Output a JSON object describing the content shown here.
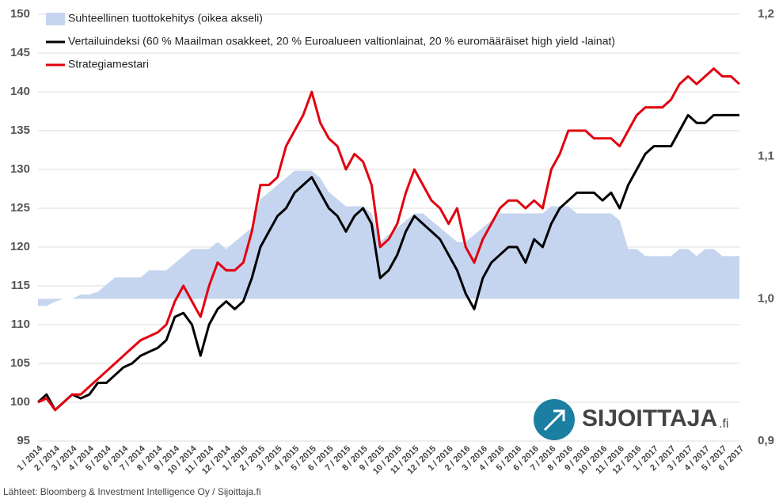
{
  "chart_data": {
    "type": "line",
    "categories": [
      "1 / 2014",
      null,
      "2 / 2014",
      null,
      "3 / 2014",
      null,
      "4 / 2014",
      null,
      "5 / 2014",
      null,
      "6 / 2014",
      null,
      "7 / 2014",
      null,
      "8 / 2014",
      null,
      "9 / 2014",
      null,
      "10 / 2014",
      null,
      "11 / 2014",
      null,
      "12 / 2014",
      null,
      "1 / 2015",
      null,
      "2 / 2015",
      null,
      "3 / 2015",
      null,
      "4 / 2015",
      null,
      "5 / 2015",
      null,
      "6 / 2015",
      null,
      "7 / 2015",
      null,
      "8 / 2015",
      null,
      "9 / 2015",
      null,
      "10 / 2015",
      null,
      "11 / 2015",
      null,
      "12 / 2015",
      null,
      "1 / 2016",
      null,
      "2 / 2016",
      null,
      "3 / 2016",
      null,
      "4 / 2016",
      null,
      "5 / 2016",
      null,
      "6 / 2016",
      null,
      "7 / 2016",
      null,
      "8 / 2016",
      null,
      "9 / 2016",
      null,
      "10 / 2016",
      null,
      "11 / 2016",
      null,
      "12 / 2016",
      null,
      "1 / 2017",
      null,
      "2 / 2017",
      null,
      "3 / 2017",
      null,
      "4 / 2017",
      null,
      "5 / 2017",
      null,
      "6 / 2017"
    ],
    "series": [
      {
        "name": "Suhteellinen tuottokehitys (oikea akseli)",
        "color": "#c5d5ef",
        "axis": "y2",
        "kind": "area",
        "values": [
          0.995,
          0.995,
          0.998,
          1.0,
          1.0,
          1.003,
          1.003,
          1.005,
          1.01,
          1.015,
          1.015,
          1.015,
          1.015,
          1.02,
          1.02,
          1.02,
          1.025,
          1.03,
          1.035,
          1.035,
          1.035,
          1.04,
          1.035,
          1.04,
          1.045,
          1.05,
          1.07,
          1.075,
          1.08,
          1.085,
          1.09,
          1.09,
          1.09,
          1.085,
          1.075,
          1.07,
          1.065,
          1.065,
          1.065,
          1.06,
          1.04,
          1.045,
          1.05,
          1.055,
          1.06,
          1.06,
          1.055,
          1.05,
          1.045,
          1.04,
          1.04,
          1.045,
          1.05,
          1.055,
          1.06,
          1.06,
          1.06,
          1.06,
          1.06,
          1.06,
          1.065,
          1.065,
          1.065,
          1.06,
          1.06,
          1.06,
          1.06,
          1.06,
          1.055,
          1.035,
          1.035,
          1.03,
          1.03,
          1.03,
          1.03,
          1.035,
          1.035,
          1.03,
          1.035,
          1.035,
          1.03,
          1.03,
          1.03
        ]
      },
      {
        "name": "Vertailuindeksi (60 % Maailman osakkeet, 20 % Euroalueen valtionlainat, 20 % euromääräiset high yield -lainat)",
        "color": "#000000",
        "values": [
          100,
          101,
          99,
          100,
          101,
          100.5,
          101,
          102.5,
          102.5,
          103.5,
          104.5,
          105,
          106,
          106.5,
          107,
          108,
          111,
          111.5,
          110,
          106,
          110,
          112,
          113,
          112,
          113,
          116,
          120,
          122,
          124,
          125,
          127,
          128,
          129,
          127,
          125,
          124,
          122,
          124,
          125,
          123,
          116,
          117,
          119,
          122,
          124,
          123,
          122,
          121,
          119,
          117,
          114,
          112,
          116,
          118,
          119,
          120,
          120,
          118,
          121,
          120,
          123,
          125,
          126,
          127,
          127,
          127,
          126,
          127,
          125,
          128,
          130,
          132,
          133,
          133,
          133,
          135,
          137,
          136,
          136,
          137,
          137,
          137,
          137
        ]
      },
      {
        "name": "Strategiamestari",
        "color": "#e3000f",
        "values": [
          100,
          100.5,
          99,
          100,
          101,
          101,
          102,
          103,
          104,
          105,
          106,
          107,
          108,
          108.5,
          109,
          110,
          113,
          115,
          113,
          111,
          115,
          118,
          117,
          117,
          118,
          122,
          128,
          128,
          129,
          133,
          135,
          137,
          140,
          136,
          134,
          133,
          130,
          132,
          131,
          128,
          120,
          121,
          123,
          127,
          130,
          128,
          126,
          125,
          123,
          125,
          120,
          118,
          121,
          123,
          125,
          126,
          126,
          125,
          126,
          125,
          130,
          132,
          135,
          135,
          135,
          134,
          134,
          134,
          133,
          135,
          137,
          138,
          138,
          138,
          139,
          141,
          142,
          141,
          142,
          143,
          142,
          142,
          141
        ]
      }
    ],
    "ylim": [
      95,
      150
    ],
    "yticks": [
      95,
      100,
      105,
      110,
      115,
      120,
      125,
      130,
      135,
      140,
      145,
      150
    ],
    "y2lim": [
      0.9,
      1.2
    ],
    "y2ticks": [
      {
        "value": 0.9,
        "label": "0,9"
      },
      {
        "value": 1.0,
        "label": "1,0"
      },
      {
        "value": 1.1,
        "label": "1,1"
      },
      {
        "value": 1.2,
        "label": "1,2"
      }
    ],
    "grid": true,
    "legend": "top-left",
    "source": "Lähteet: Bloomberg & Investment Intelligence Oy / Sijoittaja.fi"
  },
  "logo": {
    "text": "SIJOITTAJA",
    "suffix": ".fi"
  }
}
